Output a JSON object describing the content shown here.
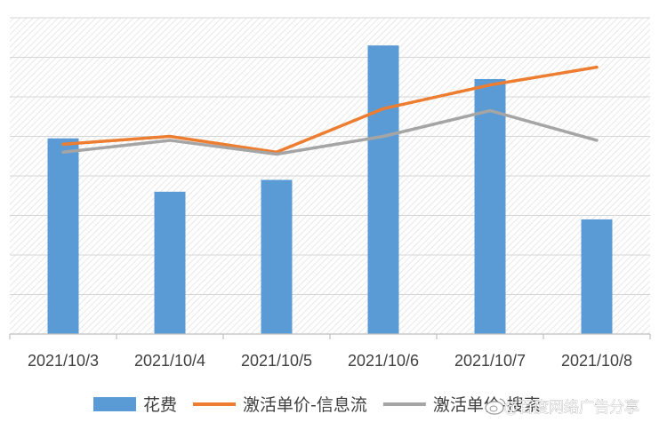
{
  "chart_data": {
    "type": "bar",
    "title": "",
    "xlabel": "",
    "ylabel": "",
    "categories": [
      "2021/10/3",
      "2021/10/4",
      "2021/10/5",
      "2021/10/6",
      "2021/10/7",
      "2021/10/8"
    ],
    "ylim": [
      0,
      8
    ],
    "grid": true,
    "legend_position": "bottom",
    "series": [
      {
        "name": "花费",
        "type": "bar",
        "color": "#5b9bd5",
        "values": [
          4.95,
          3.6,
          3.9,
          7.3,
          6.45,
          2.9
        ]
      },
      {
        "name": "激活单价-信息流",
        "type": "line",
        "color": "#ed7d31",
        "values": [
          4.8,
          5.0,
          4.6,
          5.7,
          6.3,
          6.75
        ]
      },
      {
        "name": "激活单价-搜索",
        "type": "line",
        "color": "#a5a5a5",
        "values": [
          4.6,
          4.9,
          4.55,
          5.0,
          5.65,
          4.9
        ]
      }
    ]
  },
  "watermark": {
    "text": "@百度网络广告分享",
    "icon": "weibo-logo-icon"
  }
}
